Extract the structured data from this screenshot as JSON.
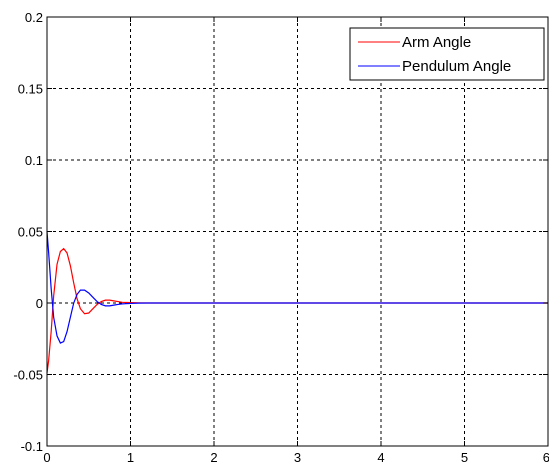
{
  "chart_data": {
    "type": "line",
    "title": "",
    "xlabel": "",
    "ylabel": "",
    "xlim": [
      0,
      6
    ],
    "ylim": [
      -0.1,
      0.2
    ],
    "grid": true,
    "legend_position": "top-right",
    "x_ticks": [
      "0",
      "1",
      "2",
      "3",
      "4",
      "5",
      "6"
    ],
    "y_ticks": [
      "-0.1",
      "-0.05",
      "0",
      "0.05",
      "0.1",
      "0.15",
      "0.2"
    ],
    "series": [
      {
        "name": "Arm Angle",
        "color": "#ff0000",
        "x": [
          0,
          0.02,
          0.05,
          0.08,
          0.12,
          0.16,
          0.2,
          0.24,
          0.28,
          0.32,
          0.36,
          0.4,
          0.45,
          0.5,
          0.55,
          0.6,
          0.65,
          0.7,
          0.75,
          0.8,
          0.85,
          0.9,
          1.0,
          1.1,
          1.2,
          1.5,
          2,
          3,
          4,
          5,
          6
        ],
        "y": [
          -0.049,
          -0.04,
          -0.02,
          0.005,
          0.027,
          0.036,
          0.038,
          0.035,
          0.026,
          0.014,
          0.003,
          -0.004,
          -0.0075,
          -0.007,
          -0.004,
          -0.001,
          0.001,
          0.002,
          0.002,
          0.0015,
          0.001,
          0.0005,
          0.0003,
          0.0001,
          0,
          0,
          0,
          0,
          0,
          0,
          0
        ]
      },
      {
        "name": "Pendulum Angle",
        "color": "#0000ff",
        "x": [
          0,
          0.02,
          0.05,
          0.08,
          0.12,
          0.16,
          0.2,
          0.24,
          0.28,
          0.32,
          0.36,
          0.4,
          0.45,
          0.5,
          0.55,
          0.6,
          0.65,
          0.7,
          0.75,
          0.8,
          0.85,
          0.9,
          1.0,
          1.1,
          1.2,
          1.5,
          2,
          3,
          4,
          5,
          6
        ],
        "y": [
          0.05,
          0.035,
          0.01,
          -0.01,
          -0.023,
          -0.028,
          -0.027,
          -0.02,
          -0.01,
          0.0,
          0.006,
          0.009,
          0.009,
          0.007,
          0.004,
          0.001,
          -0.001,
          -0.002,
          -0.002,
          -0.0015,
          -0.001,
          -0.0006,
          -0.0003,
          -0.0001,
          0,
          0,
          0,
          0,
          0,
          0,
          0
        ]
      }
    ]
  }
}
